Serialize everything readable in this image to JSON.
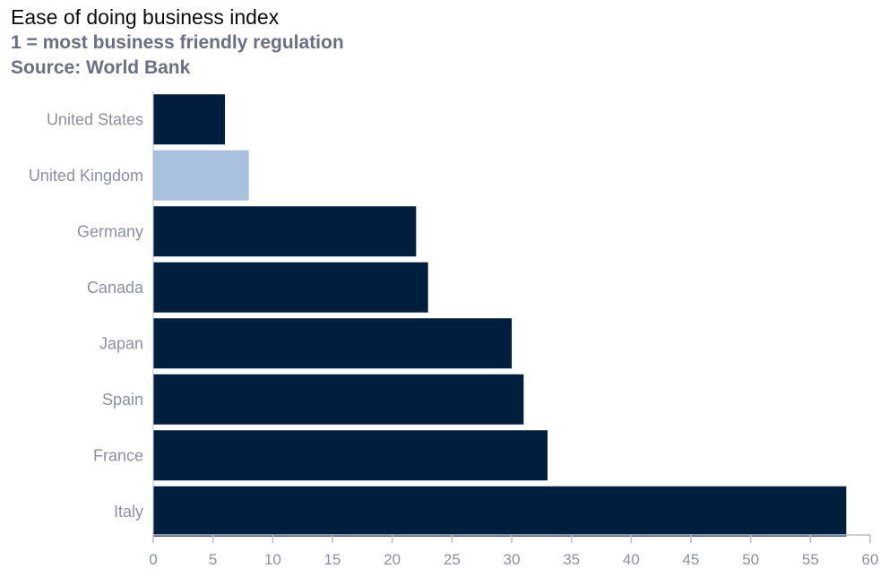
{
  "chart_data": {
    "type": "bar",
    "orientation": "horizontal",
    "title": "Ease of doing business index",
    "subtitle": "1 = most business friendly regulation",
    "source": "Source: World Bank",
    "categories": [
      "United States",
      "United Kingdom",
      "Germany",
      "Canada",
      "Japan",
      "Spain",
      "France",
      "Italy"
    ],
    "values": [
      6,
      8,
      22,
      23,
      30,
      31,
      33,
      58
    ],
    "highlight": "United Kingdom",
    "xlim": [
      0,
      60
    ],
    "xticks": [
      0,
      5,
      10,
      15,
      20,
      25,
      30,
      35,
      40,
      45,
      50,
      55,
      60
    ],
    "grid": false,
    "colors": {
      "bar": "#001f3f",
      "highlight": "#a9c0de",
      "axis": "#b8bccb",
      "label": "#8d90a2"
    }
  }
}
